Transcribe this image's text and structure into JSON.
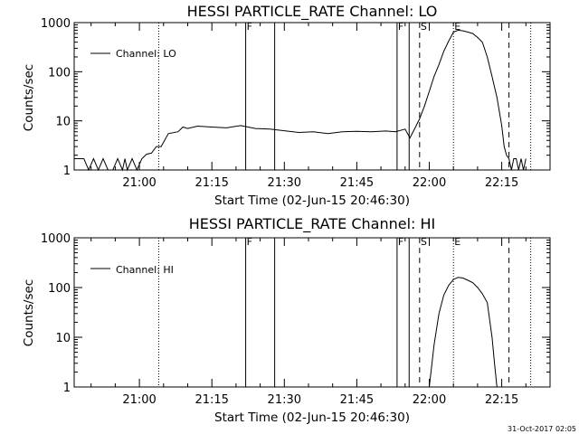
{
  "footer": {
    "timestamp": "31-Oct-2017 02:05"
  },
  "chart_data": [
    {
      "type": "line",
      "title": "HESSI PARTICLE_RATE Channel: LO",
      "xlabel": "Start Time (02-Jun-15 20:46:30)",
      "ylabel": "Counts/sec",
      "yscale": "log",
      "xlim": [
        "20:46:30",
        "22:25:00"
      ],
      "ylim": [
        1,
        1000
      ],
      "x_ticks": [
        "21:00",
        "21:15",
        "21:30",
        "21:45",
        "22:00",
        "22:15"
      ],
      "y_ticks": [
        "1",
        "10",
        "100",
        "1000"
      ],
      "grid": false,
      "legend_position": "top-left",
      "line_color": "#000000",
      "markers": [
        {
          "label": "F",
          "time": "21:22:00",
          "style": "solid"
        },
        {
          "label": "",
          "time": "21:28:00",
          "style": "solid"
        },
        {
          "label": "F",
          "time": "21:53:20",
          "style": "solid"
        },
        {
          "label": "",
          "time": "21:55:50",
          "style": "solid"
        },
        {
          "label": "",
          "time": "21:04:00",
          "style": "dotted"
        },
        {
          "label": "S",
          "time": "21:58:00",
          "style": "dashed"
        },
        {
          "label": "E",
          "time": "22:05:00",
          "style": "dotted"
        },
        {
          "label": "",
          "time": "22:16:30",
          "style": "dashed"
        },
        {
          "label": "",
          "time": "22:21:00",
          "style": "dotted"
        }
      ],
      "series": [
        {
          "name": "Channel: LO",
          "x": [
            "20:46:30",
            "20:48:30",
            "20:49:30",
            "20:50:30",
            "20:51:30",
            "20:52:30",
            "20:53:30",
            "20:54:30",
            "20:55:30",
            "20:56:30",
            "20:57:00",
            "20:57:30",
            "20:58:30",
            "20:59:30",
            "21:00:30",
            "21:01:30",
            "21:02:30",
            "21:03:30",
            "21:04:30",
            "21:06:00",
            "21:08:00",
            "21:09:00",
            "21:10:00",
            "21:12:00",
            "21:15:00",
            "21:18:00",
            "21:21:00",
            "21:24:00",
            "21:27:00",
            "21:30:00",
            "21:33:00",
            "21:36:00",
            "21:39:00",
            "21:42:00",
            "21:45:00",
            "21:48:00",
            "21:51:00",
            "21:53:00",
            "21:55:00",
            "21:56:00",
            "21:57:00",
            "21:58:00",
            "21:59:00",
            "22:00:00",
            "22:01:00",
            "22:02:00",
            "22:03:00",
            "22:04:00",
            "22:05:00",
            "22:06:00",
            "22:07:00",
            "22:08:00",
            "22:09:00",
            "22:10:00",
            "22:11:00",
            "22:12:00",
            "22:13:00",
            "22:14:00",
            "22:15:00",
            "22:15:30",
            "22:16:00",
            "22:16:30",
            "22:17:00",
            "22:17:30",
            "22:18:00",
            "22:18:30",
            "22:19:00",
            "22:19:30",
            "22:20:00"
          ],
          "y": [
            1.7,
            1.7,
            1.0,
            1.7,
            1.0,
            1.7,
            1.0,
            1.0,
            1.7,
            1.0,
            1.7,
            1.0,
            1.7,
            1.0,
            1.7,
            2.1,
            2.2,
            3.0,
            3.0,
            5.5,
            6.0,
            7.5,
            7.0,
            7.8,
            7.5,
            7.2,
            8.0,
            7.0,
            6.8,
            6.3,
            5.8,
            6.0,
            5.5,
            6.0,
            6.1,
            6.0,
            6.2,
            6.0,
            6.8,
            4.5,
            7.0,
            11.0,
            20.0,
            40.0,
            80.0,
            140.0,
            260.0,
            420.0,
            640.0,
            700.0,
            680.0,
            640.0,
            600.0,
            500.0,
            400.0,
            200.0,
            80.0,
            30.0,
            8.0,
            3.0,
            2.0,
            1.7,
            1.0,
            1.7,
            1.7,
            1.0,
            1.7,
            1.0,
            1.7
          ]
        }
      ]
    },
    {
      "type": "line",
      "title": "HESSI PARTICLE_RATE Channel: HI",
      "xlabel": "Start Time (02-Jun-15 20:46:30)",
      "ylabel": "Counts/sec",
      "yscale": "log",
      "xlim": [
        "20:46:30",
        "22:25:00"
      ],
      "ylim": [
        1,
        1000
      ],
      "x_ticks": [
        "21:00",
        "21:15",
        "21:30",
        "21:45",
        "22:00",
        "22:15"
      ],
      "y_ticks": [
        "1",
        "10",
        "100",
        "1000"
      ],
      "grid": false,
      "legend_position": "top-left",
      "line_color": "#000000",
      "markers": [
        {
          "label": "F",
          "time": "21:22:00",
          "style": "solid"
        },
        {
          "label": "",
          "time": "21:28:00",
          "style": "solid"
        },
        {
          "label": "F",
          "time": "21:53:20",
          "style": "solid"
        },
        {
          "label": "",
          "time": "21:55:50",
          "style": "solid"
        },
        {
          "label": "",
          "time": "21:04:00",
          "style": "dotted"
        },
        {
          "label": "S",
          "time": "21:58:00",
          "style": "dashed"
        },
        {
          "label": "E",
          "time": "22:05:00",
          "style": "dotted"
        },
        {
          "label": "",
          "time": "22:16:30",
          "style": "dashed"
        },
        {
          "label": "",
          "time": "22:21:00",
          "style": "dotted"
        }
      ],
      "series": [
        {
          "name": "Channel: HI",
          "x": [
            "22:00:00",
            "22:01:00",
            "22:02:00",
            "22:03:00",
            "22:04:00",
            "22:05:00",
            "22:06:00",
            "22:07:00",
            "22:08:00",
            "22:09:00",
            "22:10:00",
            "22:11:00",
            "22:12:00",
            "22:13:00",
            "22:13:30",
            "22:14:00"
          ],
          "y": [
            1.0,
            7.0,
            30.0,
            70.0,
            110.0,
            145.0,
            160.0,
            155.0,
            140.0,
            125.0,
            100.0,
            75.0,
            50.0,
            10.0,
            3.0,
            1.0
          ]
        }
      ]
    }
  ]
}
